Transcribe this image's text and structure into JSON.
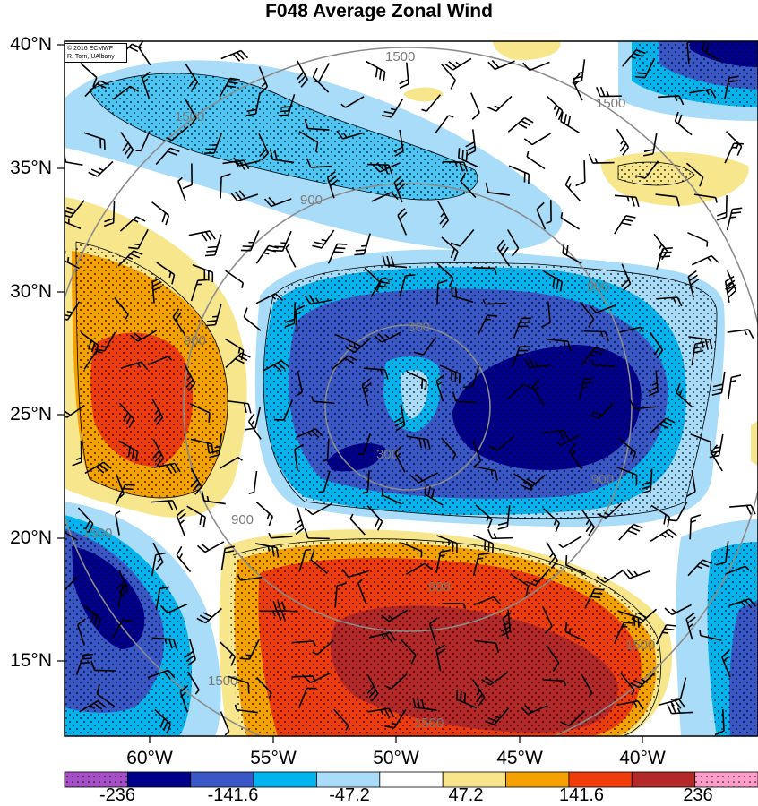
{
  "title": "F048 Average Zonal Wind",
  "credit": {
    "line1": "© 2016 ECMWF",
    "line2": "R. Torn, UAlbany"
  },
  "axes": {
    "lat_labels": [
      "40°N",
      "35°N",
      "30°N",
      "25°N",
      "20°N",
      "15°N"
    ],
    "lon_labels": [
      "60°W",
      "55°W",
      "50°W",
      "45°W",
      "40°W"
    ]
  },
  "contour_labels": [
    "1500",
    "1500",
    "1500",
    "1500",
    "900",
    "900",
    "900",
    "900",
    "900",
    "300",
    "300",
    "1500",
    "900",
    "1500",
    "1500"
  ],
  "colorbar": {
    "colors": [
      "#a64fc8",
      "#00008c",
      "#3a57c8",
      "#00b4f0",
      "#a8dcf8",
      "#ffffff",
      "#f8e68c",
      "#f5a100",
      "#f03c0a",
      "#b42828",
      "#ff9cc8"
    ],
    "labels": [
      "-236",
      "-141.6",
      "-47.2",
      "47.2",
      "141.6",
      "236"
    ]
  },
  "colors": {
    "strong_negative": "#00008c",
    "medium_negative": "#3a57c8",
    "weak_negative": "#00b4f0",
    "faint_negative": "#a8dcf8",
    "faint_positive": "#f8e68c",
    "weak_positive": "#f5a100",
    "medium_positive": "#f03c0a",
    "strong_positive": "#b42828"
  }
}
